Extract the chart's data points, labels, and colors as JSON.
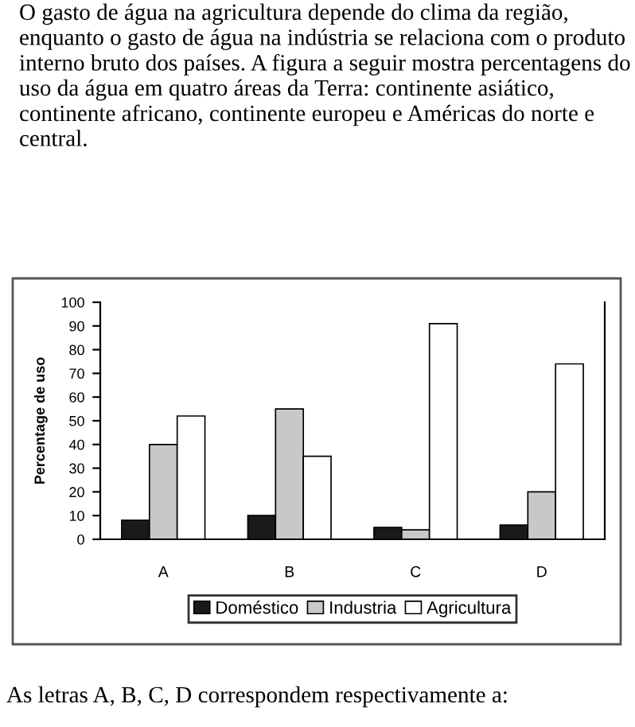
{
  "chart_data": {
    "type": "bar",
    "title": "O gasto de água na agricultura depende do clima da região, enquanto o gasto de água na indústria se relaciona com o produto interno bruto dos países. A figura a seguir mostra percentagens do uso da água em quatro áreas da Terra: continente asiático, continente africano, continente europeu e Américas do norte e central.",
    "ylabel": "Percentage de uso",
    "categories": [
      "A",
      "B",
      "C",
      "D"
    ],
    "series": [
      {
        "name": "Doméstico",
        "color": "#1a1a1a",
        "values": [
          8,
          10,
          5,
          6
        ]
      },
      {
        "name": "Industria",
        "color": "#c8c8c8",
        "values": [
          40,
          55,
          4,
          20
        ]
      },
      {
        "name": "Agricultura",
        "color": "#ffffff",
        "values": [
          52,
          35,
          91,
          74
        ]
      }
    ],
    "ylim": [
      0,
      100
    ],
    "yticks": [
      0,
      10,
      20,
      30,
      40,
      50,
      60,
      70,
      80,
      90,
      100
    ],
    "grid": false,
    "legend": "bottom",
    "annotations": [
      "As letras A, B, C, D correspondem respectivamente a:"
    ]
  }
}
